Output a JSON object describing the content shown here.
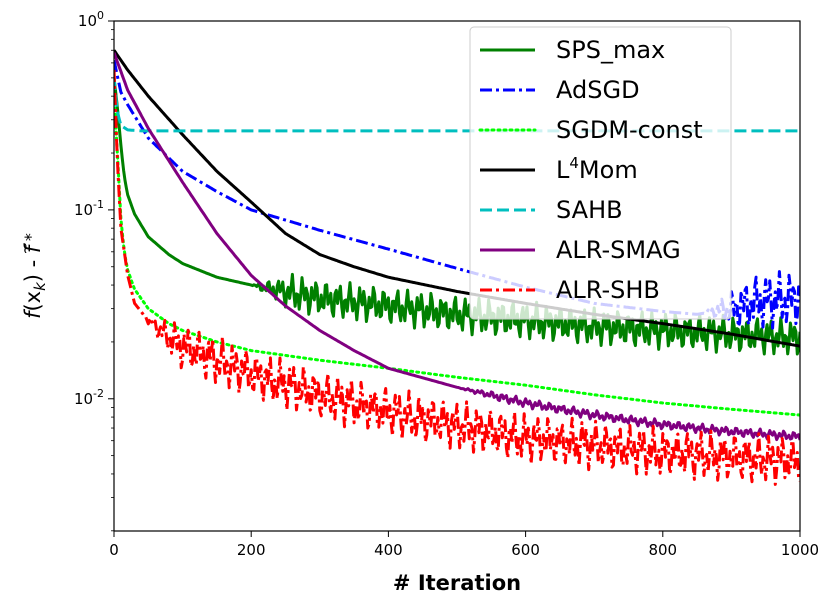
{
  "chart_data": {
    "type": "line",
    "title": "",
    "xlabel": "# Iteration",
    "ylabel": {
      "f": "f",
      "paren_open": "(x",
      "sub": "k",
      "paren_close": ")",
      "dash": " - ",
      "fstar": "f",
      "tilde": "~",
      "star": "*"
    },
    "xlim": [
      0,
      1000
    ],
    "ylim_log10": [
      -2.7,
      0
    ],
    "x_ticks": [
      0,
      200,
      400,
      600,
      800,
      1000
    ],
    "x_tick_labels": [
      "0",
      "200",
      "400",
      "600",
      "800",
      "1000"
    ],
    "y_ticks_log10": [
      -2,
      -1,
      0
    ],
    "y_tick_labels": [
      {
        "base": "10",
        "exp": "-2"
      },
      {
        "base": "10",
        "exp": "-1"
      },
      {
        "base": "10",
        "exp": "0"
      }
    ],
    "legend_position": "top-right",
    "series": [
      {
        "name": "SPS_max",
        "label_main": "SPS_max",
        "label_sup": "",
        "label_tail": "",
        "color": "#008000",
        "dash": "solid",
        "osc": 0.12,
        "osc_start": 200,
        "points": [
          [
            0,
            0.5
          ],
          [
            5,
            0.35
          ],
          [
            10,
            0.22
          ],
          [
            15,
            0.15
          ],
          [
            20,
            0.12
          ],
          [
            30,
            0.095
          ],
          [
            50,
            0.072
          ],
          [
            80,
            0.058
          ],
          [
            100,
            0.052
          ],
          [
            150,
            0.044
          ],
          [
            200,
            0.04
          ],
          [
            300,
            0.034
          ],
          [
            400,
            0.031
          ],
          [
            500,
            0.028
          ],
          [
            600,
            0.026
          ],
          [
            700,
            0.024
          ],
          [
            800,
            0.023
          ],
          [
            900,
            0.022
          ],
          [
            1000,
            0.021
          ]
        ]
      },
      {
        "name": "AdSGD",
        "label_main": "AdSGD",
        "label_sup": "",
        "label_tail": "",
        "color": "#0000ff",
        "dash": "dashdot",
        "osc": 0.18,
        "osc_start": 860,
        "points": [
          [
            0,
            0.62
          ],
          [
            10,
            0.42
          ],
          [
            20,
            0.36
          ],
          [
            50,
            0.24
          ],
          [
            100,
            0.16
          ],
          [
            150,
            0.125
          ],
          [
            200,
            0.1
          ],
          [
            300,
            0.078
          ],
          [
            400,
            0.062
          ],
          [
            500,
            0.049
          ],
          [
            600,
            0.039
          ],
          [
            700,
            0.032
          ],
          [
            800,
            0.029
          ],
          [
            850,
            0.028
          ],
          [
            900,
            0.03
          ],
          [
            950,
            0.033
          ],
          [
            1000,
            0.034
          ]
        ]
      },
      {
        "name": "SGDM-const",
        "label_main": "SGDM-const",
        "label_sup": "",
        "label_tail": "",
        "color": "#00ff00",
        "dash": "dotted",
        "osc": 0,
        "osc_start": 0,
        "points": [
          [
            0,
            0.4
          ],
          [
            5,
            0.2
          ],
          [
            10,
            0.09
          ],
          [
            15,
            0.06
          ],
          [
            20,
            0.048
          ],
          [
            30,
            0.038
          ],
          [
            50,
            0.03
          ],
          [
            80,
            0.025
          ],
          [
            100,
            0.023
          ],
          [
            150,
            0.02
          ],
          [
            200,
            0.018
          ],
          [
            300,
            0.016
          ],
          [
            400,
            0.0145
          ],
          [
            500,
            0.013
          ],
          [
            600,
            0.0118
          ],
          [
            700,
            0.0105
          ],
          [
            800,
            0.0095
          ],
          [
            900,
            0.0088
          ],
          [
            1000,
            0.0082
          ]
        ]
      },
      {
        "name": "L4Mom",
        "label_main": "L",
        "label_sup": "4",
        "label_tail": "Mom",
        "color": "#000000",
        "dash": "solid",
        "osc": 0,
        "osc_start": 0,
        "points": [
          [
            0,
            0.7
          ],
          [
            20,
            0.55
          ],
          [
            50,
            0.4
          ],
          [
            100,
            0.25
          ],
          [
            150,
            0.16
          ],
          [
            200,
            0.11
          ],
          [
            250,
            0.075
          ],
          [
            300,
            0.058
          ],
          [
            350,
            0.05
          ],
          [
            400,
            0.044
          ],
          [
            500,
            0.037
          ],
          [
            600,
            0.032
          ],
          [
            700,
            0.028
          ],
          [
            800,
            0.025
          ],
          [
            900,
            0.022
          ],
          [
            1000,
            0.019
          ]
        ]
      },
      {
        "name": "SAHB",
        "label_main": "SAHB",
        "label_sup": "",
        "label_tail": "",
        "color": "#00bfbf",
        "dash": "dashed",
        "osc": 0,
        "osc_start": 0,
        "points": [
          [
            0,
            0.5
          ],
          [
            5,
            0.33
          ],
          [
            10,
            0.28
          ],
          [
            20,
            0.265
          ],
          [
            40,
            0.262
          ],
          [
            1000,
            0.262
          ]
        ]
      },
      {
        "name": "ALR-SMAG",
        "label_main": "ALR-SMAG",
        "label_sup": "",
        "label_tail": "",
        "color": "#800080",
        "dash": "solid",
        "osc": 0.03,
        "osc_start": 500,
        "points": [
          [
            0,
            0.68
          ],
          [
            20,
            0.43
          ],
          [
            50,
            0.27
          ],
          [
            100,
            0.14
          ],
          [
            150,
            0.075
          ],
          [
            200,
            0.045
          ],
          [
            250,
            0.031
          ],
          [
            300,
            0.023
          ],
          [
            350,
            0.018
          ],
          [
            400,
            0.0145
          ],
          [
            500,
            0.0115
          ],
          [
            600,
            0.0095
          ],
          [
            700,
            0.0082
          ],
          [
            800,
            0.0073
          ],
          [
            900,
            0.0067
          ],
          [
            1000,
            0.0063
          ]
        ]
      },
      {
        "name": "ALR-SHB",
        "label_main": "ALR-SHB",
        "label_sup": "",
        "label_tail": "",
        "color": "#ff0000",
        "dash": "dashdot",
        "osc": 0.16,
        "osc_start": 40,
        "points": [
          [
            0,
            0.55
          ],
          [
            5,
            0.18
          ],
          [
            10,
            0.08
          ],
          [
            20,
            0.045
          ],
          [
            30,
            0.032
          ],
          [
            50,
            0.026
          ],
          [
            80,
            0.021
          ],
          [
            100,
            0.019
          ],
          [
            150,
            0.016
          ],
          [
            200,
            0.0135
          ],
          [
            300,
            0.0105
          ],
          [
            400,
            0.0085
          ],
          [
            500,
            0.0072
          ],
          [
            600,
            0.0062
          ],
          [
            700,
            0.0057
          ],
          [
            800,
            0.0052
          ],
          [
            900,
            0.0049
          ],
          [
            1000,
            0.0047
          ]
        ]
      }
    ]
  }
}
